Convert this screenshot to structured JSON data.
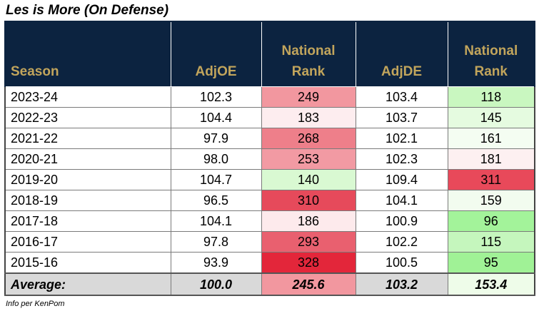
{
  "title": "Les is More (On Defense)",
  "headers": [
    "Season",
    "AdjOE",
    "National Rank",
    "AdjDE",
    "National Rank"
  ],
  "rows": [
    {
      "season": "2023-24",
      "adjoe": "102.3",
      "oe_rank": "249",
      "oe_color": "#f2979f",
      "adjde": "103.4",
      "de_rank": "118",
      "de_color": "#c9f7c0"
    },
    {
      "season": "2022-23",
      "adjoe": "104.4",
      "oe_rank": "183",
      "oe_color": "#fdedef",
      "adjde": "103.7",
      "de_rank": "145",
      "de_color": "#e5fbe0"
    },
    {
      "season": "2021-22",
      "adjoe": "97.9",
      "oe_rank": "268",
      "oe_color": "#ee7f8a",
      "adjde": "102.1",
      "de_rank": "161",
      "de_color": "#f4fdf2"
    },
    {
      "season": "2020-21",
      "adjoe": "98.0",
      "oe_rank": "253",
      "oe_color": "#f29aa3",
      "adjde": "102.3",
      "de_rank": "181",
      "de_color": "#fdf0f1"
    },
    {
      "season": "2019-20",
      "adjoe": "104.7",
      "oe_rank": "140",
      "oe_color": "#d9f9d2",
      "adjde": "109.4",
      "de_rank": "311",
      "de_color": "#e8495a"
    },
    {
      "season": "2018-19",
      "adjoe": "96.5",
      "oe_rank": "310",
      "oe_color": "#e64a5b",
      "adjde": "104.1",
      "de_rank": "159",
      "de_color": "#f2fcef"
    },
    {
      "season": "2017-18",
      "adjoe": "104.1",
      "oe_rank": "186",
      "oe_color": "#fdeaec",
      "adjde": "100.9",
      "de_rank": "96",
      "de_color": "#a3f39a"
    },
    {
      "season": "2016-17",
      "adjoe": "97.8",
      "oe_rank": "293",
      "oe_color": "#e9606f",
      "adjde": "102.2",
      "de_rank": "115",
      "de_color": "#c5f6bd"
    },
    {
      "season": "2015-16",
      "adjoe": "93.9",
      "oe_rank": "328",
      "oe_color": "#e3263a",
      "adjde": "100.5",
      "de_rank": "95",
      "de_color": "#a0f296"
    }
  ],
  "average": {
    "label": "Average:",
    "adjoe": "100.0",
    "oe_rank": "245.6",
    "oe_color": "#f2979f",
    "adjde": "103.2",
    "de_rank": "153.4",
    "de_color": "#eefce9"
  },
  "footnote": "Info per KenPom"
}
